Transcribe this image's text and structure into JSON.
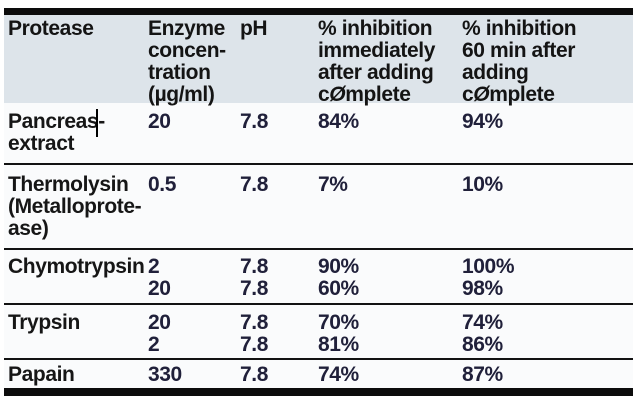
{
  "table": {
    "headers": {
      "col1": "Protease",
      "col2_lines": [
        "Enzyme",
        "concen-",
        "tration",
        "(µg/ml)"
      ],
      "col3": "pH",
      "col4_lines": [
        "% inhibition",
        "immediately",
        "after adding"
      ],
      "col5_lines": [
        "% inhibition",
        "60 min after",
        "adding"
      ],
      "brand": {
        "pre": "c",
        "o": "Ø",
        "post": "mplete"
      }
    },
    "rows": [
      {
        "protease_lines": [
          "Pancreas-",
          "extract"
        ],
        "entries": [
          {
            "conc": "20",
            "ph": "7.8",
            "inh_0": "84%",
            "inh_60": "94%"
          }
        ]
      },
      {
        "protease_lines": [
          "Thermolysin",
          "(Metalloprote-",
          "ase)"
        ],
        "entries": [
          {
            "conc": "0.5",
            "ph": "7.8",
            "inh_0": "7%",
            "inh_60": "10%"
          }
        ]
      },
      {
        "protease_lines": [
          "Chymotrypsin"
        ],
        "entries": [
          {
            "conc": "2",
            "ph": "7.8",
            "inh_0": "90%",
            "inh_60": "100%"
          },
          {
            "conc": "20",
            "ph": "7.8",
            "inh_0": "60%",
            "inh_60": "98%"
          }
        ]
      },
      {
        "protease_lines": [
          "Trypsin"
        ],
        "entries": [
          {
            "conc": "20",
            "ph": "7.8",
            "inh_0": "70%",
            "inh_60": "74%"
          },
          {
            "conc": "2",
            "ph": "7.8",
            "inh_0": "81%",
            "inh_60": "86%"
          }
        ]
      },
      {
        "protease_lines": [
          "Papain"
        ],
        "entries": [
          {
            "conc": "330",
            "ph": "7.8",
            "inh_0": "74%",
            "inh_60": "87%"
          }
        ]
      }
    ],
    "colors": {
      "header_bg": "#dde4ea",
      "body_bg": "#fafbfc",
      "rule_black": "#0c0c0c",
      "separator": "#121212",
      "text": "#161616",
      "numeric_text": "#20203a",
      "page_bg": "#ffffff",
      "caret": "#000000"
    }
  }
}
